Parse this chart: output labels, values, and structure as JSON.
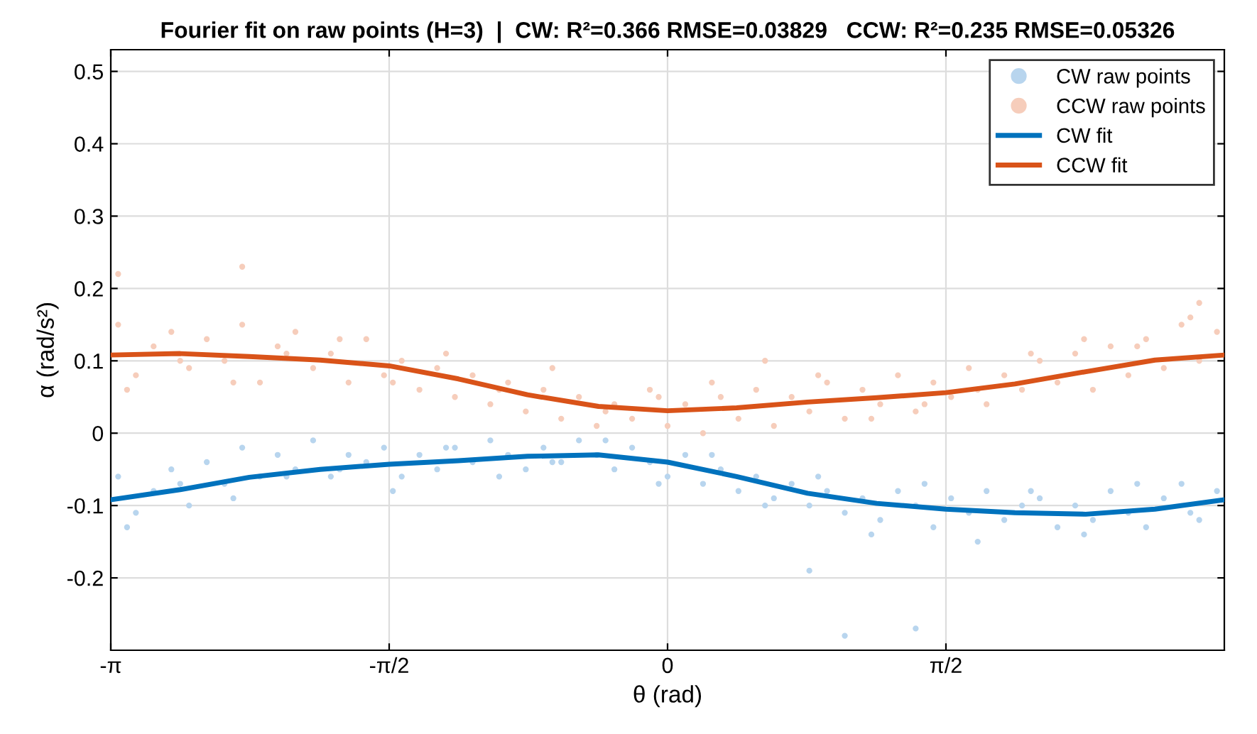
{
  "chart_data": {
    "type": "scatter",
    "title": "Fourier fit on raw points (H=3)  |  CW: R²=0.366 RMSE=0.03829   CCW: R²=0.235 RMSE=0.05326",
    "xlabel": "θ (rad)",
    "ylabel": "α (rad/s²)",
    "xlim": [
      -3.1416,
      3.1416
    ],
    "xticks": [
      {
        "value": -3.1416,
        "label": "-π"
      },
      {
        "value": -1.5708,
        "label": "-π/2"
      },
      0,
      {
        "value": 1.5708,
        "label": "π/2"
      }
    ],
    "ylim": [
      -0.3,
      0.53
    ],
    "yticks": [
      -0.2,
      -0.1,
      0,
      0.1,
      0.2,
      0.3,
      0.4,
      0.5
    ],
    "grid": true,
    "legend": "top right",
    "marker": "circle",
    "series": [
      {
        "name": "CW raw points",
        "color": "#b8d5ee",
        "x": [
          -3.1,
          -3.0,
          -2.9,
          -2.8,
          -2.7,
          -2.6,
          -2.5,
          -2.4,
          -2.3,
          -2.2,
          -2.1,
          -2.0,
          -1.9,
          -1.8,
          -1.7,
          -1.6,
          -1.5,
          -1.4,
          -1.3,
          -1.2,
          -1.1,
          -1.0,
          -0.9,
          -0.8,
          -0.7,
          -0.6,
          -0.5,
          -0.4,
          -0.3,
          -0.2,
          -0.1,
          0.0,
          0.1,
          0.2,
          0.3,
          0.4,
          0.5,
          0.6,
          0.7,
          0.8,
          0.9,
          1.0,
          1.1,
          1.2,
          1.3,
          1.4,
          1.5,
          1.6,
          1.7,
          1.8,
          1.9,
          2.0,
          2.1,
          2.2,
          2.3,
          2.4,
          2.5,
          2.6,
          2.7,
          2.8,
          2.9,
          3.0,
          3.1,
          -3.05,
          -2.75,
          -2.45,
          -2.15,
          -1.85,
          -1.55,
          -1.25,
          -0.95,
          -0.65,
          -0.35,
          -0.05,
          0.25,
          0.55,
          0.85,
          1.15,
          1.45,
          1.75,
          2.05,
          2.35,
          2.65,
          2.95,
          1.0,
          1.4,
          0.8
        ],
        "values": [
          -0.06,
          -0.11,
          -0.08,
          -0.05,
          -0.1,
          -0.04,
          -0.07,
          -0.02,
          -0.06,
          -0.03,
          -0.05,
          -0.01,
          -0.06,
          -0.03,
          -0.04,
          -0.02,
          -0.06,
          -0.03,
          -0.05,
          -0.02,
          -0.04,
          -0.01,
          -0.03,
          -0.05,
          -0.02,
          -0.04,
          -0.01,
          -0.03,
          -0.05,
          -0.02,
          -0.04,
          -0.06,
          -0.03,
          -0.07,
          -0.05,
          -0.08,
          -0.06,
          -0.09,
          -0.07,
          -0.1,
          -0.08,
          -0.11,
          -0.09,
          -0.12,
          -0.08,
          -0.1,
          -0.13,
          -0.09,
          -0.11,
          -0.08,
          -0.12,
          -0.1,
          -0.09,
          -0.13,
          -0.1,
          -0.12,
          -0.08,
          -0.11,
          -0.13,
          -0.09,
          -0.07,
          -0.12,
          -0.08,
          -0.13,
          -0.07,
          -0.09,
          -0.06,
          -0.05,
          -0.08,
          -0.02,
          -0.06,
          -0.04,
          -0.01,
          -0.07,
          -0.03,
          -0.1,
          -0.06,
          -0.14,
          -0.07,
          -0.15,
          -0.08,
          -0.14,
          -0.07,
          -0.11,
          -0.28,
          -0.27,
          -0.19
        ]
      },
      {
        "name": "CCW raw points",
        "color": "#f6cdbb",
        "x": [
          -3.1,
          -3.0,
          -2.9,
          -2.8,
          -2.7,
          -2.6,
          -2.5,
          -2.4,
          -2.3,
          -2.2,
          -2.1,
          -2.0,
          -1.9,
          -1.8,
          -1.7,
          -1.6,
          -1.5,
          -1.4,
          -1.3,
          -1.2,
          -1.1,
          -1.0,
          -0.9,
          -0.8,
          -0.7,
          -0.6,
          -0.5,
          -0.4,
          -0.3,
          -0.2,
          -0.1,
          0.0,
          0.1,
          0.2,
          0.3,
          0.4,
          0.5,
          0.6,
          0.7,
          0.8,
          0.9,
          1.0,
          1.1,
          1.2,
          1.3,
          1.4,
          1.5,
          1.6,
          1.7,
          1.8,
          1.9,
          2.0,
          2.1,
          2.2,
          2.3,
          2.4,
          2.5,
          2.6,
          2.7,
          2.8,
          2.9,
          3.0,
          3.1,
          -3.05,
          -2.75,
          -2.45,
          -2.15,
          -1.85,
          -1.55,
          -1.25,
          -0.95,
          -0.65,
          -0.35,
          -0.05,
          0.25,
          0.55,
          0.85,
          1.15,
          1.45,
          1.75,
          2.05,
          2.35,
          2.65,
          2.95,
          -3.1,
          -2.4,
          3.0
        ],
        "values": [
          0.15,
          0.08,
          0.12,
          0.14,
          0.09,
          0.13,
          0.1,
          0.15,
          0.07,
          0.12,
          0.14,
          0.09,
          0.11,
          0.07,
          0.13,
          0.08,
          0.1,
          0.06,
          0.09,
          0.05,
          0.08,
          0.04,
          0.07,
          0.03,
          0.06,
          0.02,
          0.05,
          0.01,
          0.04,
          0.02,
          0.06,
          0.01,
          0.04,
          0.0,
          0.05,
          0.02,
          0.06,
          0.01,
          0.05,
          0.03,
          0.07,
          0.02,
          0.06,
          0.04,
          0.08,
          0.03,
          0.07,
          0.05,
          0.09,
          0.04,
          0.08,
          0.06,
          0.1,
          0.07,
          0.11,
          0.06,
          0.12,
          0.08,
          0.13,
          0.09,
          0.15,
          0.1,
          0.14,
          0.06,
          0.1,
          0.07,
          0.11,
          0.13,
          0.07,
          0.11,
          0.06,
          0.09,
          0.03,
          0.05,
          0.07,
          0.1,
          0.08,
          0.02,
          0.04,
          0.06,
          0.11,
          0.13,
          0.12,
          0.16,
          0.22,
          0.23,
          0.18
        ]
      },
      {
        "name": "CW fit",
        "type": "line",
        "color": "#0072bd",
        "marker": "none",
        "line_style": "solid",
        "x": [
          -3.1416,
          -2.75,
          -2.36,
          -1.96,
          -1.57,
          -1.18,
          -0.79,
          -0.39,
          0,
          0.39,
          0.79,
          1.18,
          1.57,
          1.96,
          2.36,
          2.75,
          3.1416
        ],
        "values": [
          -0.092,
          -0.078,
          -0.061,
          -0.05,
          -0.043,
          -0.038,
          -0.032,
          -0.03,
          -0.04,
          -0.06,
          -0.083,
          -0.097,
          -0.105,
          -0.11,
          -0.112,
          -0.105,
          -0.092
        ]
      },
      {
        "name": "CCW fit",
        "type": "line",
        "color": "#d95319",
        "marker": "none",
        "line_style": "solid",
        "x": [
          -3.1416,
          -2.75,
          -2.36,
          -1.96,
          -1.57,
          -1.18,
          -0.79,
          -0.39,
          0,
          0.39,
          0.79,
          1.18,
          1.57,
          1.96,
          2.36,
          2.75,
          3.1416
        ],
        "values": [
          0.108,
          0.11,
          0.106,
          0.101,
          0.093,
          0.075,
          0.053,
          0.037,
          0.031,
          0.035,
          0.043,
          0.049,
          0.056,
          0.068,
          0.085,
          0.101,
          0.108
        ]
      }
    ]
  }
}
